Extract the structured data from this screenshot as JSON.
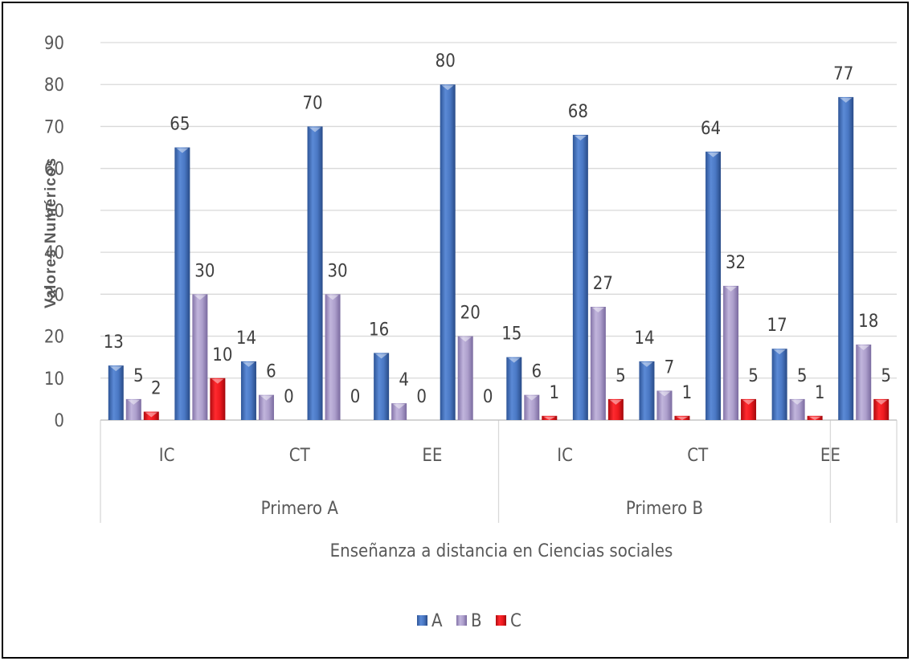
{
  "chart_data": {
    "type": "bar",
    "ylabel": "Valores Numéricos",
    "xlabel": "Enseñanza a distancia en Ciencias sociales",
    "ylim": [
      0,
      90
    ],
    "yticks": [
      0,
      10,
      20,
      30,
      40,
      50,
      60,
      70,
      80,
      90
    ],
    "grid": true,
    "legend_position": "bottom",
    "groups": [
      "Primero A",
      "Primero B",
      ""
    ],
    "categories": [
      "IC",
      "",
      "CT",
      "",
      "EE",
      "",
      "IC",
      "",
      "CT",
      "",
      "EE",
      ""
    ],
    "category_group": [
      0,
      0,
      0,
      0,
      0,
      0,
      1,
      1,
      1,
      1,
      1,
      2
    ],
    "series": [
      {
        "name": "A",
        "color": "#4472c4",
        "values": [
          13,
          65,
          14,
          70,
          16,
          80,
          15,
          68,
          14,
          64,
          17,
          77
        ],
        "labels": [
          "13",
          "65",
          "14",
          "70",
          "16",
          "80",
          "15",
          "68",
          "14",
          "64",
          "17",
          "77"
        ]
      },
      {
        "name": "B",
        "color": "#a99bc6",
        "values": [
          5,
          30,
          6,
          30,
          4,
          20,
          6,
          27,
          7,
          32,
          5,
          18
        ],
        "labels": [
          "5",
          "30",
          "6",
          "30",
          "4",
          "20",
          "6",
          "27",
          "7",
          "32",
          "5",
          "18"
        ]
      },
      {
        "name": "C",
        "color": "#e8141a",
        "values": [
          2,
          10,
          0,
          0,
          0,
          0,
          1,
          5,
          1,
          5,
          1,
          5
        ],
        "labels": [
          "2",
          "10",
          "0",
          "0",
          "0",
          "0",
          "1",
          "5",
          "1",
          "5",
          "1",
          "5"
        ]
      }
    ]
  }
}
